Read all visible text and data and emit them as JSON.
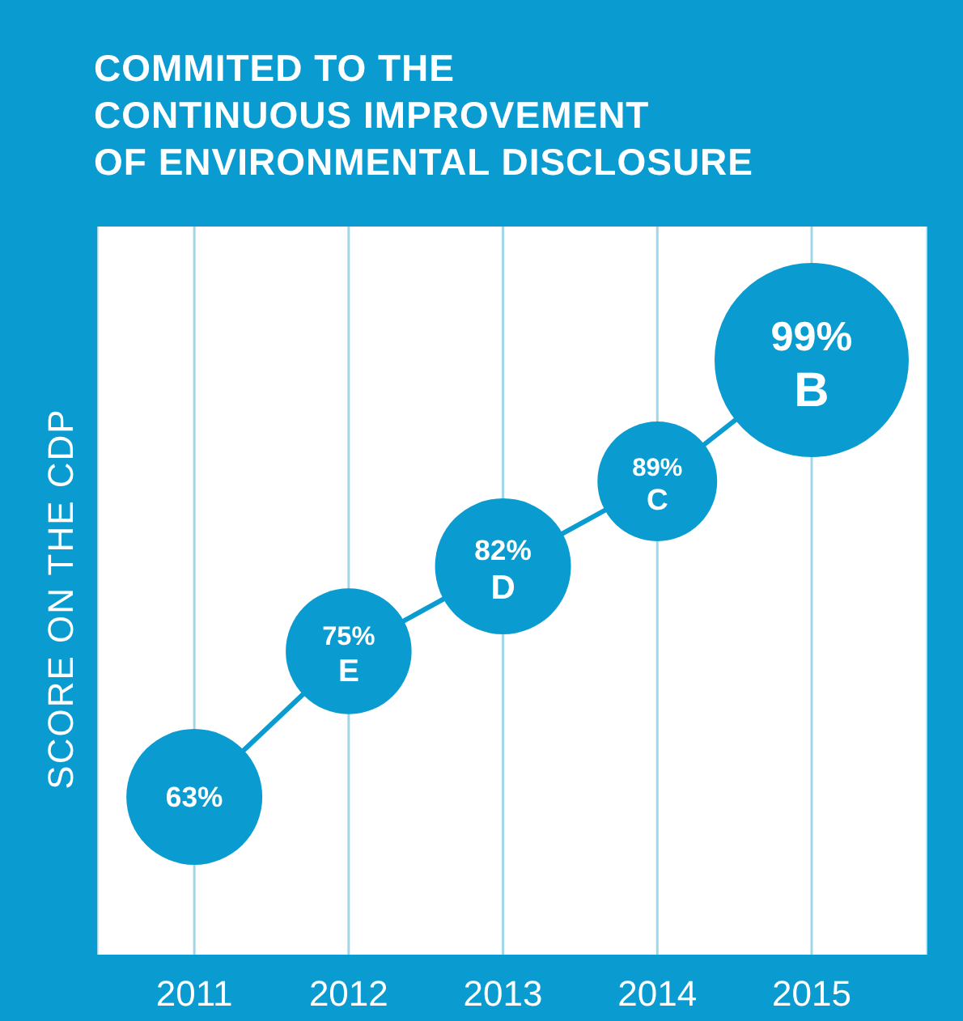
{
  "chart_data": {
    "type": "bubble",
    "title": "COMMITED TO THE\nCONTINUOUS IMPROVEMENT\nOF ENVIRONMENTAL DISCLOSURE",
    "ylabel": "SCORE ON THE CDP",
    "categories": [
      "2011",
      "2012",
      "2013",
      "2014",
      "2015"
    ],
    "values": [
      63,
      75,
      82,
      89,
      99
    ],
    "sizes": [
      0.49,
      0.42,
      0.49,
      0.38,
      1
    ],
    "value_labels": [
      "63%",
      "75%",
      "82%",
      "89%",
      "99%"
    ],
    "annotations": [
      {
        "text": "E",
        "x": "2012",
        "y": 75
      },
      {
        "text": "D",
        "x": "2013",
        "y": 82
      },
      {
        "text": "C",
        "x": "2014",
        "y": 89
      },
      {
        "text": "B",
        "x": "2015",
        "y": 99
      }
    ],
    "color": "#0a9bd0",
    "line_style": "solid",
    "grid": "x",
    "tick_labels": "x",
    "ylim": [
      50,
      110
    ]
  }
}
